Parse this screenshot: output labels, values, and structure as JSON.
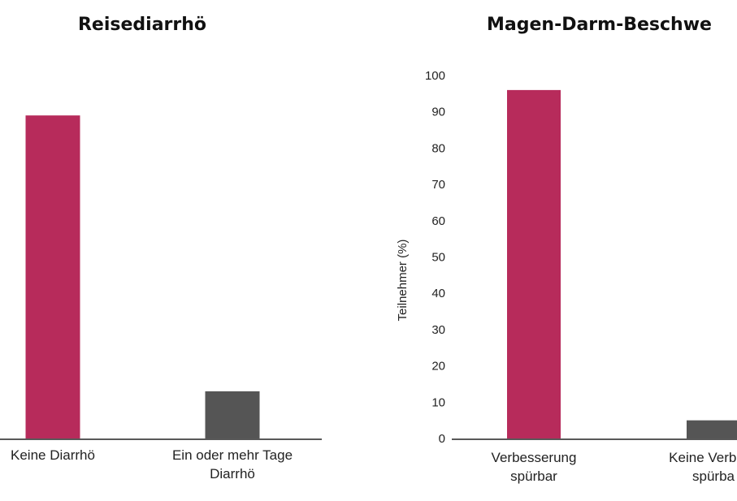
{
  "chart_data": [
    {
      "type": "bar",
      "title": "Reisediarrhö",
      "categories": [
        [
          "Keine Diarrhö"
        ],
        [
          "Ein oder mehr Tage",
          "Diarrhö"
        ]
      ],
      "values": [
        89,
        13
      ],
      "colors": [
        "#b72b5b",
        "#555555"
      ],
      "ylim": [
        0,
        100
      ],
      "ylabel": ""
    },
    {
      "type": "bar",
      "title": "Magen-Darm-Beschwe",
      "categories": [
        [
          "Verbesserung",
          "spürbar"
        ],
        [
          "Keine Verbess",
          "spürba"
        ]
      ],
      "values": [
        96,
        5
      ],
      "colors": [
        "#b72b5b",
        "#555555"
      ],
      "ylim": [
        0,
        100
      ],
      "yticks": [
        0,
        10,
        20,
        30,
        40,
        50,
        60,
        70,
        80,
        90,
        100
      ],
      "ylabel": "Teilnehmer (%)"
    }
  ]
}
